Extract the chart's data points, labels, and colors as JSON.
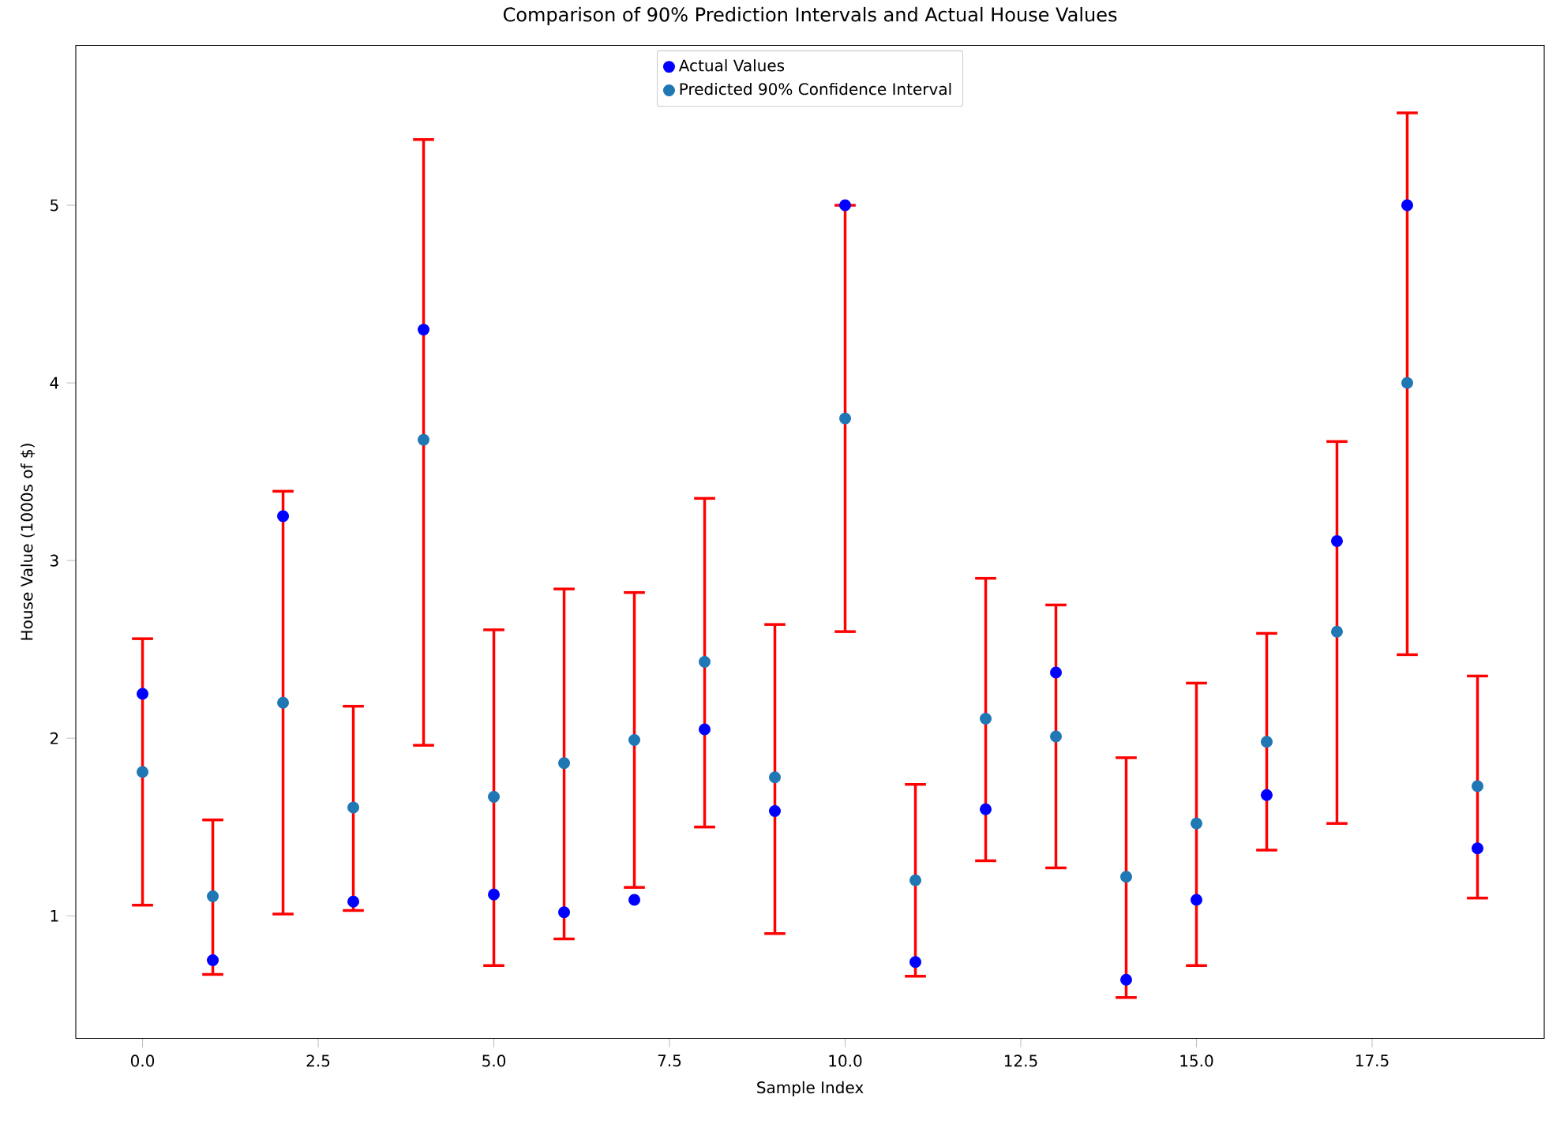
{
  "chart_data": {
    "type": "scatter",
    "title": "Comparison of 90% Prediction Intervals and Actual House Values",
    "xlabel": "Sample Index",
    "ylabel": "House Value (1000s of $)",
    "x": [
      0,
      1,
      2,
      3,
      4,
      5,
      6,
      7,
      8,
      9,
      10,
      11,
      12,
      13,
      14,
      15,
      16,
      17,
      18,
      19
    ],
    "series": [
      {
        "name": "Actual Values",
        "color": "#0000ff",
        "values": [
          2.25,
          0.75,
          3.25,
          1.08,
          4.3,
          1.12,
          1.02,
          1.09,
          2.05,
          1.59,
          5.0,
          0.74,
          1.6,
          2.37,
          0.64,
          1.09,
          1.68,
          3.11,
          5.0,
          1.38
        ]
      },
      {
        "name": "Predicted 90% Confidence Interval",
        "color": "#1f77b4",
        "values": [
          1.81,
          1.11,
          2.2,
          1.61,
          3.68,
          1.67,
          1.86,
          1.99,
          2.43,
          1.78,
          3.8,
          1.2,
          2.11,
          2.01,
          1.22,
          1.52,
          1.98,
          2.6,
          4.0,
          1.73
        ],
        "errors": [
          [
            1.06,
            2.56
          ],
          [
            0.67,
            1.54
          ],
          [
            1.01,
            3.39
          ],
          [
            1.03,
            2.18
          ],
          [
            1.96,
            5.37
          ],
          [
            0.72,
            2.61
          ],
          [
            0.87,
            2.84
          ],
          [
            1.16,
            2.82
          ],
          [
            1.5,
            3.35
          ],
          [
            0.9,
            2.64
          ],
          [
            2.6,
            5.0
          ],
          [
            0.66,
            1.74
          ],
          [
            1.31,
            2.9
          ],
          [
            1.27,
            2.75
          ],
          [
            0.54,
            1.89
          ],
          [
            0.72,
            2.31
          ],
          [
            1.37,
            2.59
          ],
          [
            1.52,
            3.67
          ],
          [
            2.47,
            5.52
          ],
          [
            1.1,
            2.35
          ]
        ]
      }
    ],
    "xlim": [
      -0.95,
      19.95
    ],
    "ylim": [
      0.31,
      5.9
    ],
    "xticks": [
      {
        "value": 0,
        "label": "0.0"
      },
      {
        "value": 2.5,
        "label": "2.5"
      },
      {
        "value": 5,
        "label": "5.0"
      },
      {
        "value": 7.5,
        "label": "7.5"
      },
      {
        "value": 10,
        "label": "10.0"
      },
      {
        "value": 12.5,
        "label": "12.5"
      },
      {
        "value": 15,
        "label": "15.0"
      },
      {
        "value": 17.5,
        "label": "17.5"
      }
    ],
    "yticks": [
      1,
      2,
      3,
      4,
      5
    ],
    "grid": false,
    "legend": "top"
  }
}
